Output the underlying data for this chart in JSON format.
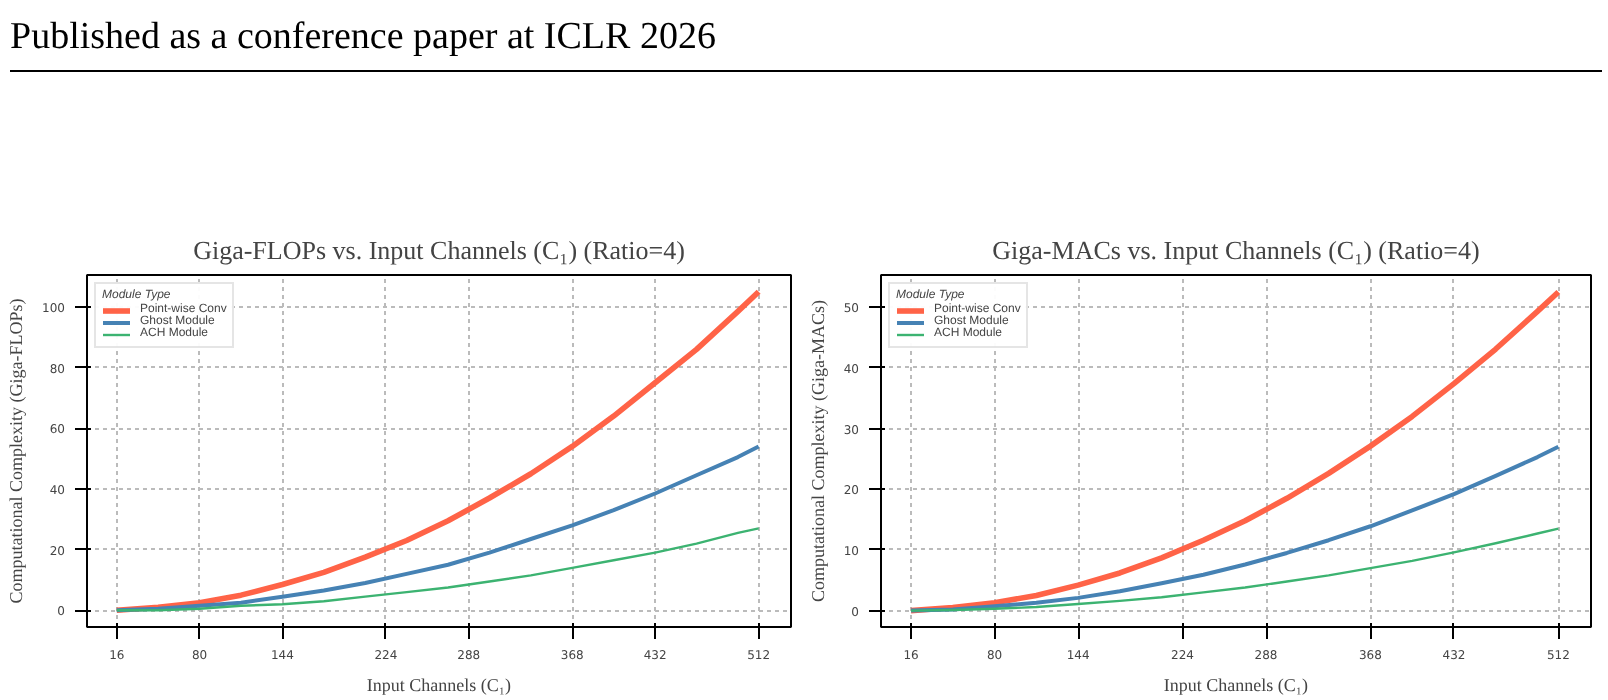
{
  "chart_data": [
    {
      "type": "line",
      "title": "Giga-FLOPs vs. Input Channels (C₁) (Ratio=4)",
      "xlabel": "Input Channels (C₁)",
      "ylabel": "Computational Complexity (Giga-FLOPs)",
      "legend_title": "Module Type",
      "annotations": [
        "Published as a conference paper at ICLR 2026"
      ],
      "x": [
        16,
        48,
        80,
        112,
        144,
        176,
        208,
        240,
        272,
        304,
        336,
        368,
        400,
        432,
        464,
        496,
        512
      ],
      "series": [
        {
          "name": "Point-wise Conv",
          "color": "#ff6347",
          "values": [
            0,
            1,
            2.5,
            5,
            8.5,
            12.5,
            17.5,
            23,
            29.5,
            37,
            45,
            54,
            64,
            75,
            86,
            98.5,
            105
          ]
        },
        {
          "name": "Ghost Module",
          "color": "#4682b4",
          "values": [
            0,
            0.5,
            1.5,
            2.5,
            4.5,
            6.5,
            9,
            12,
            15,
            19,
            23.5,
            28,
            33,
            38.5,
            44.5,
            50.5,
            54
          ]
        },
        {
          "name": "ACH Module",
          "color": "#3cb371",
          "values": [
            0,
            0,
            0.5,
            1.5,
            2,
            3,
            4.5,
            6,
            7.5,
            9.5,
            11.5,
            14,
            16.5,
            19,
            22,
            25.5,
            27
          ]
        }
      ],
      "xlim": [
        -7,
        537
      ],
      "xticks": [
        16,
        80,
        144,
        224,
        288,
        368,
        432,
        512
      ],
      "ylim": [
        -5.5,
        110.5
      ],
      "yticks": [
        0,
        20,
        40,
        60,
        80,
        100
      ],
      "grid": true,
      "legend": "top left"
    },
    {
      "type": "line",
      "title": "Giga-MACs vs. Input Channels (C₁) (Ratio=4)",
      "xlabel": "Input Channels (C₁)",
      "ylabel": "Computational Complexity (Giga-MACs)",
      "legend_title": "Module Type",
      "x": [
        16,
        48,
        80,
        112,
        144,
        176,
        208,
        240,
        272,
        304,
        336,
        368,
        400,
        432,
        464,
        496,
        512
      ],
      "series": [
        {
          "name": "Point-wise Conv",
          "color": "#ff6347",
          "values": [
            0,
            0.5,
            1.3,
            2.5,
            4.2,
            6.2,
            8.7,
            11.6,
            14.8,
            18.5,
            22.6,
            27.1,
            32,
            37.4,
            43.1,
            49.3,
            52.5
          ]
        },
        {
          "name": "Ghost Module",
          "color": "#4682b4",
          "values": [
            0,
            0.2,
            0.7,
            1.3,
            2.1,
            3.2,
            4.5,
            5.9,
            7.6,
            9.5,
            11.6,
            13.9,
            16.5,
            19.2,
            22.2,
            25.3,
            27
          ]
        },
        {
          "name": "ACH Module",
          "color": "#3cb371",
          "values": [
            0,
            0.1,
            0.3,
            0.6,
            1.1,
            1.6,
            2.2,
            3,
            3.8,
            4.8,
            5.8,
            7,
            8.2,
            9.6,
            11.1,
            12.7,
            13.5
          ]
        }
      ],
      "xlim": [
        -7,
        537
      ],
      "xticks": [
        16,
        80,
        144,
        224,
        288,
        368,
        432,
        512
      ],
      "ylim": [
        -2.7,
        55.3
      ],
      "yticks": [
        0,
        10,
        20,
        30,
        40,
        50
      ],
      "grid": true,
      "legend": "top left"
    }
  ]
}
